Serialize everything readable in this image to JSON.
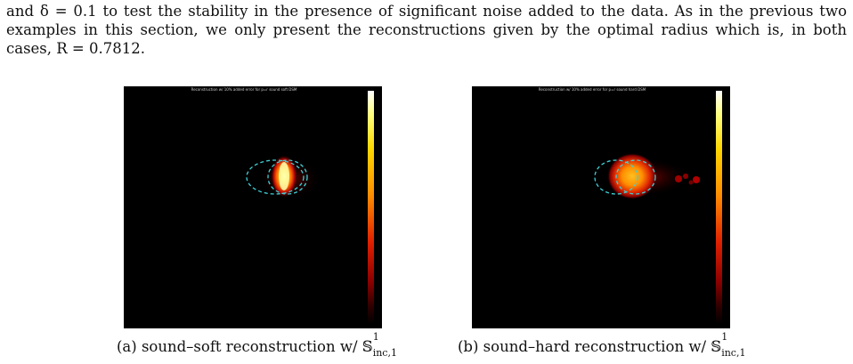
{
  "paragraph": {
    "line1": "and δ = 0.1 to test the stability in the presence of significant noise added to the data. As in the previous two",
    "line2": "examples in this section, we only present the reconstructions given by the optimal radius which is, in both",
    "line3": "cases, R = 0.7812."
  },
  "figures": [
    {
      "title": "Reconstruction w/ 10% added error for p=r sound soft DSM",
      "caption_prefix": "(a) sound–soft reconstruction w/",
      "caption_symbol": "𝕊",
      "caption_sup": "1",
      "caption_sub": "inc,1"
    },
    {
      "title": "Reconstruction w/ 10% added error for p=r sound hard DSM",
      "caption_prefix": "(b) sound–hard reconstruction w/",
      "caption_symbol": "𝕊",
      "caption_sup": "1",
      "caption_sub": "inc,1"
    }
  ],
  "colors": {
    "background": "#000000",
    "dashed_circle": "#3fd0d8"
  }
}
